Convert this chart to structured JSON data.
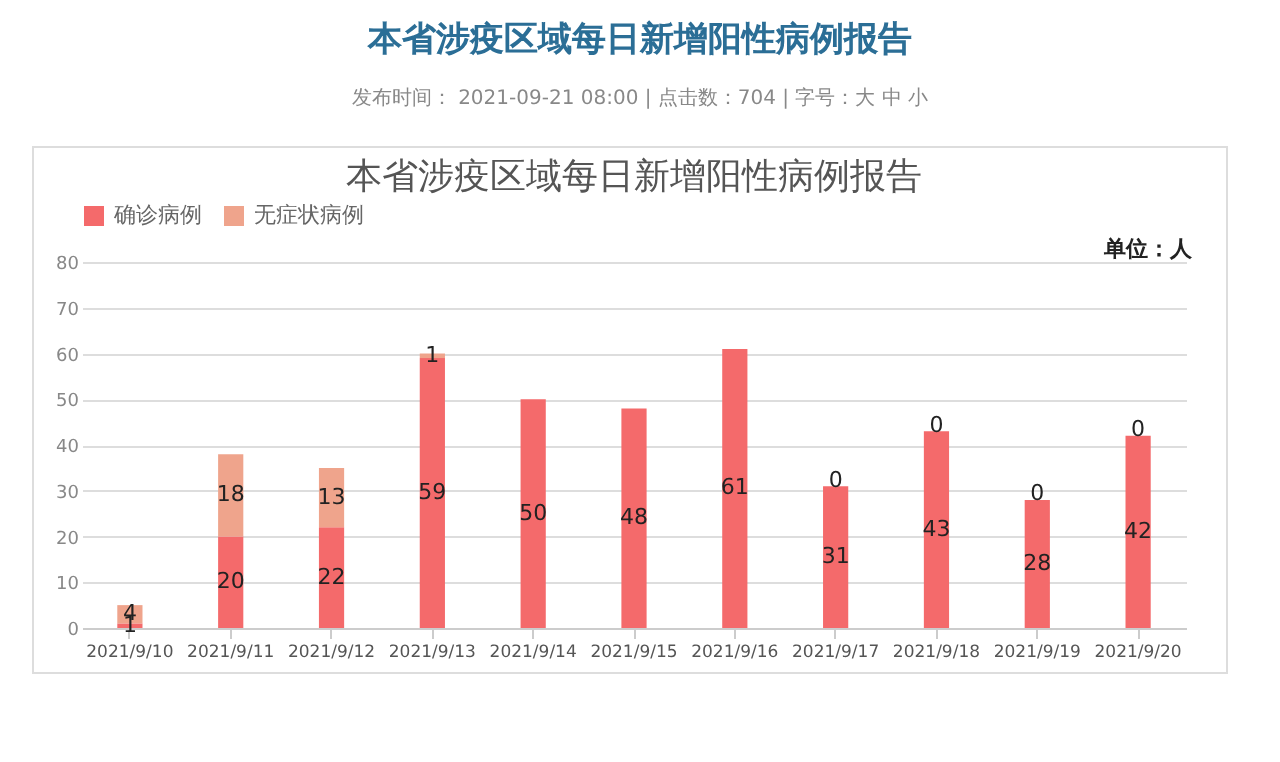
{
  "chart_data": {
    "type": "bar",
    "title": "本省涉疫区域每日新增阳性病例报告",
    "annotations": [
      "本省涉疫区域每日新增阳性病例报告",
      "发布时间： 2021-09-21 08:00 | 点击数：704 | 字号：大 中 小",
      "单位：人"
    ],
    "categories": [
      "2021/9/10",
      "2021/9/11",
      "2021/9/12",
      "2021/9/13",
      "2021/9/14",
      "2021/9/15",
      "2021/9/16",
      "2021/9/17",
      "2021/9/18",
      "2021/9/19",
      "2021/9/20"
    ],
    "series": [
      {
        "name": "确诊病例",
        "color": "#f46a6b",
        "values": [
          1,
          20,
          22,
          59,
          50,
          48,
          61,
          31,
          43,
          28,
          42
        ]
      },
      {
        "name": "无症状病例",
        "color": "#efa48c",
        "values": [
          4,
          18,
          13,
          1,
          null,
          null,
          null,
          0,
          0,
          0,
          0
        ]
      }
    ],
    "stacked": true,
    "data_labels": true,
    "ylim": [
      0,
      80
    ],
    "yticks": [
      0,
      10,
      20,
      30,
      40,
      50,
      60,
      70,
      80
    ],
    "grid": "y",
    "legend": "top"
  }
}
